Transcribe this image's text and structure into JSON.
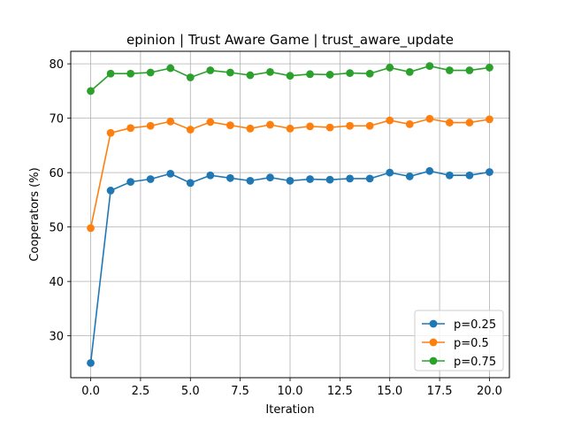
{
  "chart_data": {
    "type": "line",
    "title": "epinion | Trust Aware Game | trust_aware_update",
    "xlabel": "Iteration",
    "ylabel": "Cooperators (%)",
    "xlim": [
      -1.0,
      21.0
    ],
    "ylim": [
      22.3,
      82.3
    ],
    "xticks": [
      0.0,
      2.5,
      5.0,
      7.5,
      10.0,
      12.5,
      15.0,
      17.5,
      20.0
    ],
    "xtick_labels": [
      "0.0",
      "2.5",
      "5.0",
      "7.5",
      "10.0",
      "12.5",
      "15.0",
      "17.5",
      "20.0"
    ],
    "yticks": [
      30,
      40,
      50,
      60,
      70,
      80
    ],
    "ytick_labels": [
      "30",
      "40",
      "50",
      "60",
      "70",
      "80"
    ],
    "grid": true,
    "legend_position": "lower-right",
    "x": [
      0,
      1,
      2,
      3,
      4,
      5,
      6,
      7,
      8,
      9,
      10,
      11,
      12,
      13,
      14,
      15,
      16,
      17,
      18,
      19,
      20
    ],
    "series": [
      {
        "name": "p=0.25",
        "color": "#1f77b4",
        "values": [
          25.0,
          56.7,
          58.3,
          58.8,
          59.8,
          58.1,
          59.5,
          59.0,
          58.5,
          59.1,
          58.5,
          58.8,
          58.7,
          58.9,
          58.9,
          60.0,
          59.3,
          60.3,
          59.5,
          59.5,
          60.1
        ]
      },
      {
        "name": "p=0.5",
        "color": "#ff7f0e",
        "values": [
          49.8,
          67.3,
          68.2,
          68.6,
          69.4,
          67.9,
          69.3,
          68.7,
          68.1,
          68.8,
          68.1,
          68.5,
          68.3,
          68.6,
          68.6,
          69.6,
          68.9,
          69.9,
          69.2,
          69.2,
          69.8
        ]
      },
      {
        "name": "p=0.75",
        "color": "#2ca02c",
        "values": [
          75.0,
          78.2,
          78.2,
          78.4,
          79.2,
          77.5,
          78.8,
          78.4,
          77.9,
          78.5,
          77.8,
          78.1,
          78.0,
          78.3,
          78.2,
          79.3,
          78.5,
          79.6,
          78.8,
          78.8,
          79.3
        ]
      }
    ]
  }
}
